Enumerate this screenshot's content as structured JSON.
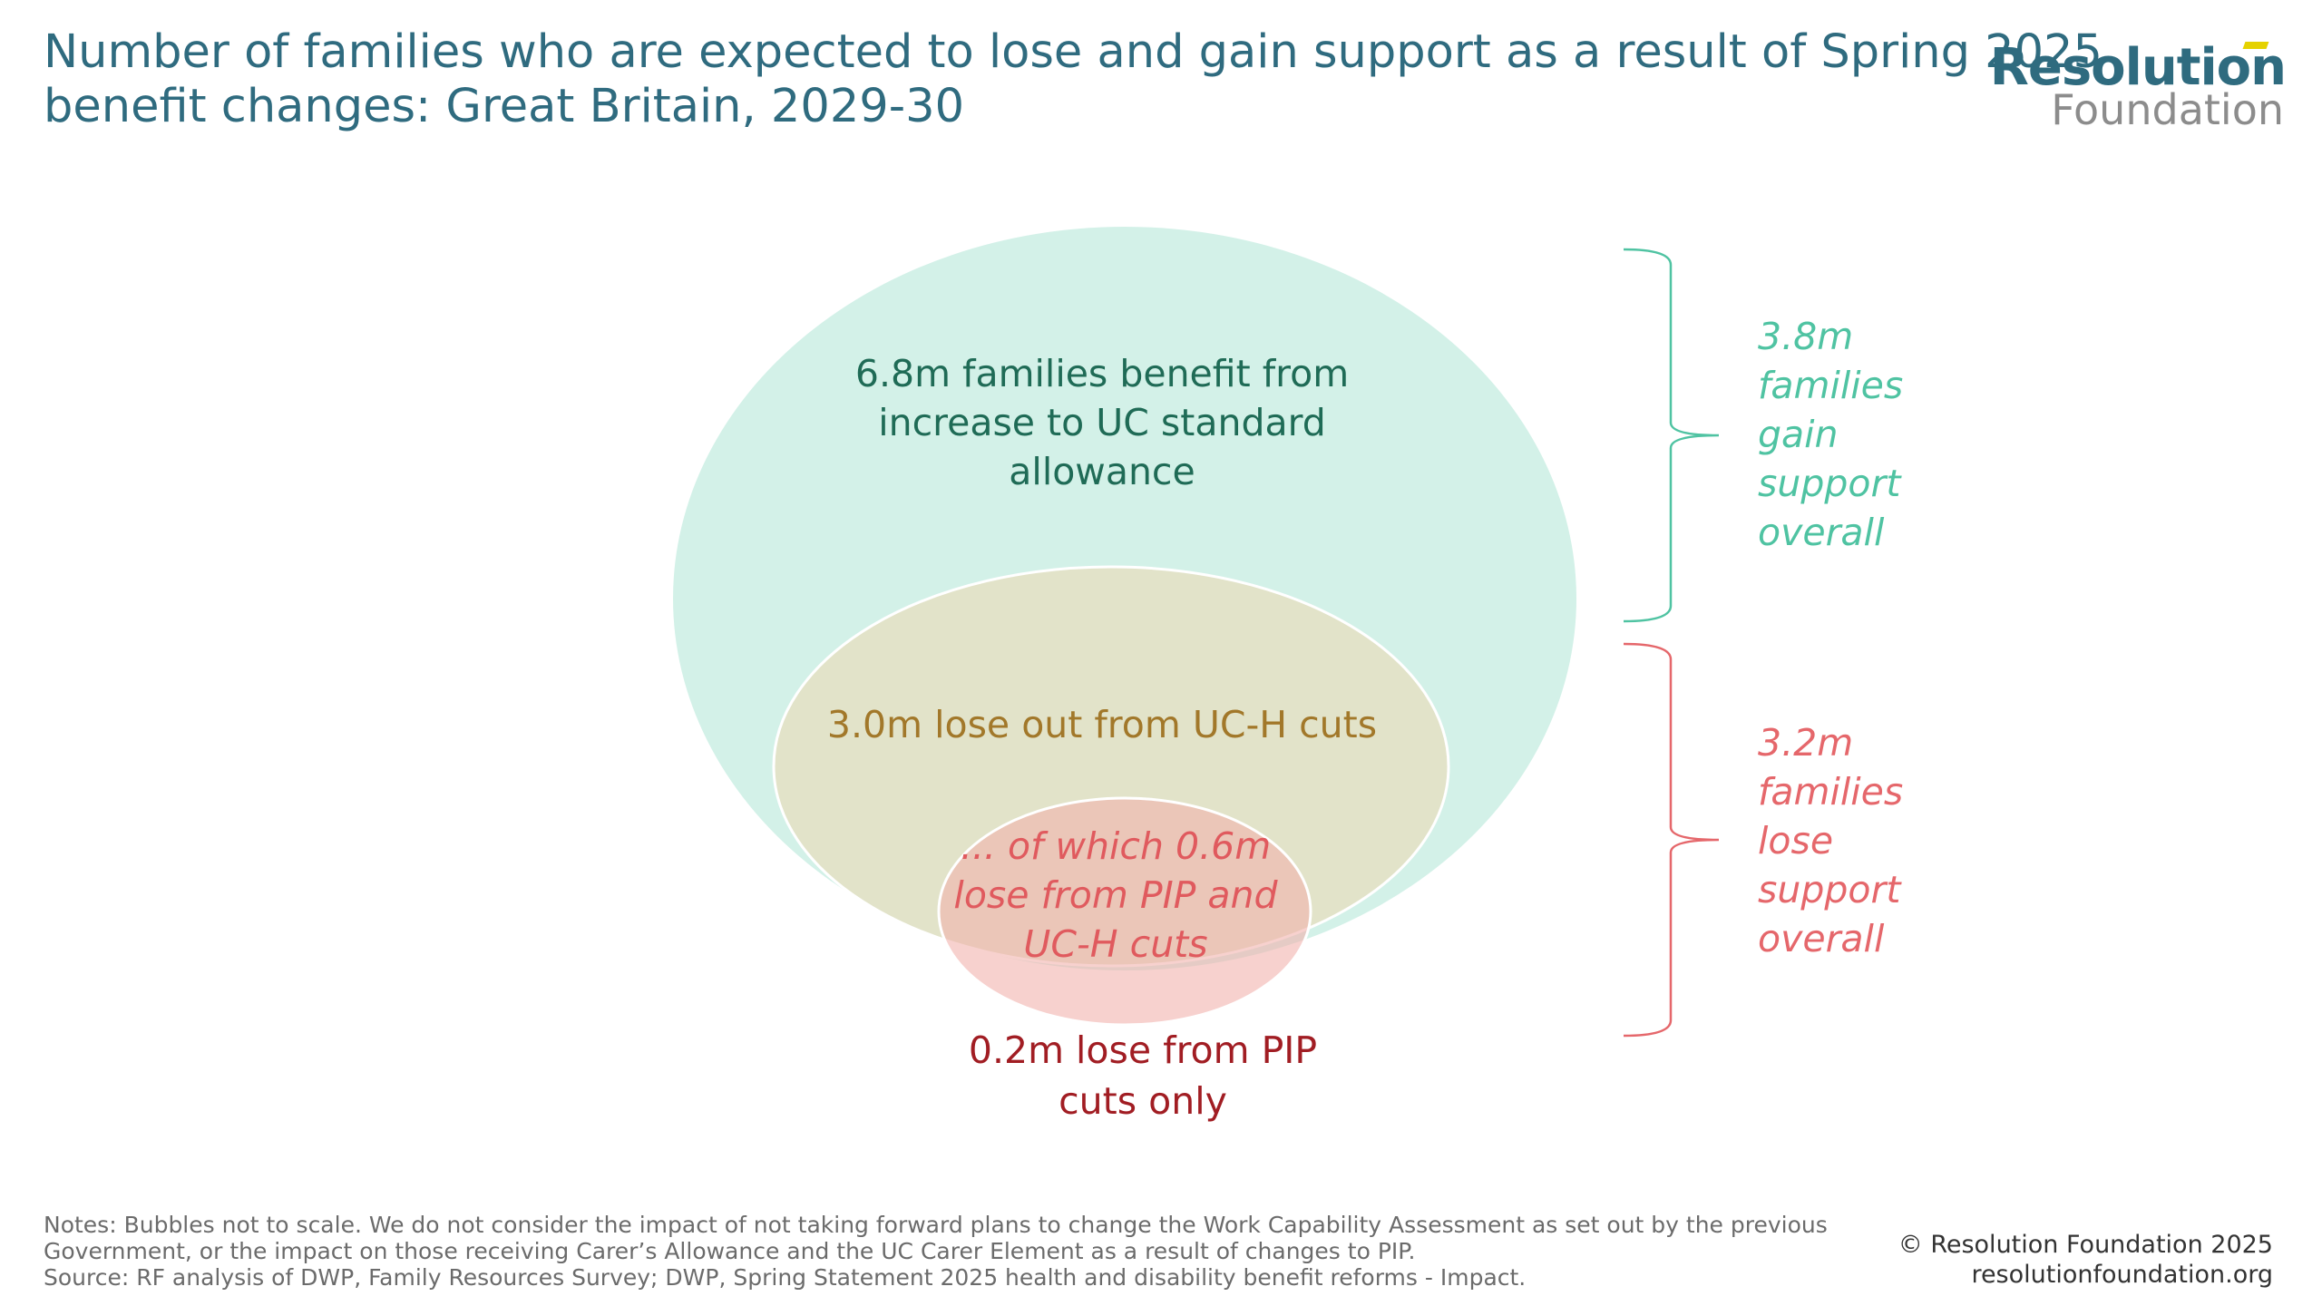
{
  "title": {
    "line1": "Number of families who are expected to lose and gain support as a result of Spring 2025",
    "line2": "benefit changes: Great Britain, 2029-30"
  },
  "logo": {
    "line1": "Resolution",
    "line2": "Foundation"
  },
  "bubbles": {
    "big": {
      "line1": "6.8m families benefit from",
      "line2": "increase to UC standard",
      "line3": "allowance",
      "color": "#d3f1e8",
      "text_color": "#1f6b56"
    },
    "mid": {
      "line1": "3.0m lose out from UC-H cuts",
      "color": "#e2e3c9",
      "text_color": "#a2782a"
    },
    "small": {
      "line1": "... of which 0.6m",
      "line2": "lose from PIP and",
      "line3": "UC-H cuts",
      "color": "#f5c6c3",
      "text_color": "#e05a5e"
    },
    "pip_only": {
      "line1": "0.2m lose from PIP",
      "line2": "cuts only",
      "text_color": "#a11d23"
    }
  },
  "brackets": {
    "gain": {
      "line1": "3.8m",
      "line2": "families",
      "line3": "gain",
      "line4": "support",
      "line5": "overall",
      "color": "#4fc3a2"
    },
    "lose": {
      "line1": "3.2m",
      "line2": "families",
      "line3": "lose",
      "line4": "support",
      "line5": "overall",
      "color": "#e5676b"
    }
  },
  "notes": {
    "line1": "Notes: Bubbles not to scale. We do not consider the impact of not taking forward plans to change the Work Capability Assessment as set out by the previous",
    "line2": "Government, or the impact on those receiving Carer’s Allowance and the UC Carer Element as a result of changes to PIP.",
    "line3": "Source: RF analysis of DWP, Family Resources Survey; DWP, Spring Statement 2025 health and disability benefit reforms - Impact."
  },
  "copyright": {
    "line1": "© Resolution Foundation 2025",
    "line2": "resolutionfoundation.org"
  }
}
